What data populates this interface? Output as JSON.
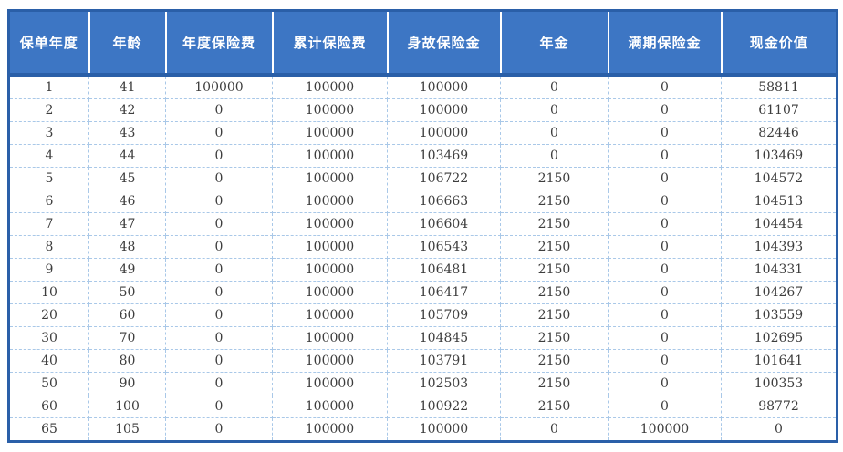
{
  "colors": {
    "header_background": "#3d76c4",
    "header_text": "#ffffff",
    "outer_border": "#2a5fa8",
    "grid_dashed_line": "#a9c8e8",
    "body_text": "#3d3d3d"
  },
  "table": {
    "headers": [
      {
        "key": "policy-year",
        "label": "保单年度"
      },
      {
        "key": "age",
        "label": "年龄"
      },
      {
        "key": "annual-premium",
        "label": "年度保险费"
      },
      {
        "key": "cumulative-premium",
        "label": "累计保险费"
      },
      {
        "key": "death-benefit",
        "label": "身故保险金"
      },
      {
        "key": "annuity",
        "label": "年金"
      },
      {
        "key": "maturity-benefit",
        "label": "满期保险金"
      },
      {
        "key": "cash-value",
        "label": "现金价值"
      }
    ],
    "rows": [
      [
        "1",
        "41",
        "100000",
        "100000",
        "100000",
        "0",
        "0",
        "58811"
      ],
      [
        "2",
        "42",
        "0",
        "100000",
        "100000",
        "0",
        "0",
        "61107"
      ],
      [
        "3",
        "43",
        "0",
        "100000",
        "100000",
        "0",
        "0",
        "82446"
      ],
      [
        "4",
        "44",
        "0",
        "100000",
        "103469",
        "0",
        "0",
        "103469"
      ],
      [
        "5",
        "45",
        "0",
        "100000",
        "106722",
        "2150",
        "0",
        "104572"
      ],
      [
        "6",
        "46",
        "0",
        "100000",
        "106663",
        "2150",
        "0",
        "104513"
      ],
      [
        "7",
        "47",
        "0",
        "100000",
        "106604",
        "2150",
        "0",
        "104454"
      ],
      [
        "8",
        "48",
        "0",
        "100000",
        "106543",
        "2150",
        "0",
        "104393"
      ],
      [
        "9",
        "49",
        "0",
        "100000",
        "106481",
        "2150",
        "0",
        "104331"
      ],
      [
        "10",
        "50",
        "0",
        "100000",
        "106417",
        "2150",
        "0",
        "104267"
      ],
      [
        "20",
        "60",
        "0",
        "100000",
        "105709",
        "2150",
        "0",
        "103559"
      ],
      [
        "30",
        "70",
        "0",
        "100000",
        "104845",
        "2150",
        "0",
        "102695"
      ],
      [
        "40",
        "80",
        "0",
        "100000",
        "103791",
        "2150",
        "0",
        "101641"
      ],
      [
        "50",
        "90",
        "0",
        "100000",
        "102503",
        "2150",
        "0",
        "100353"
      ],
      [
        "60",
        "100",
        "0",
        "100000",
        "100922",
        "2150",
        "0",
        "98772"
      ],
      [
        "65",
        "105",
        "0",
        "100000",
        "100000",
        "0",
        "100000",
        "0"
      ]
    ]
  }
}
